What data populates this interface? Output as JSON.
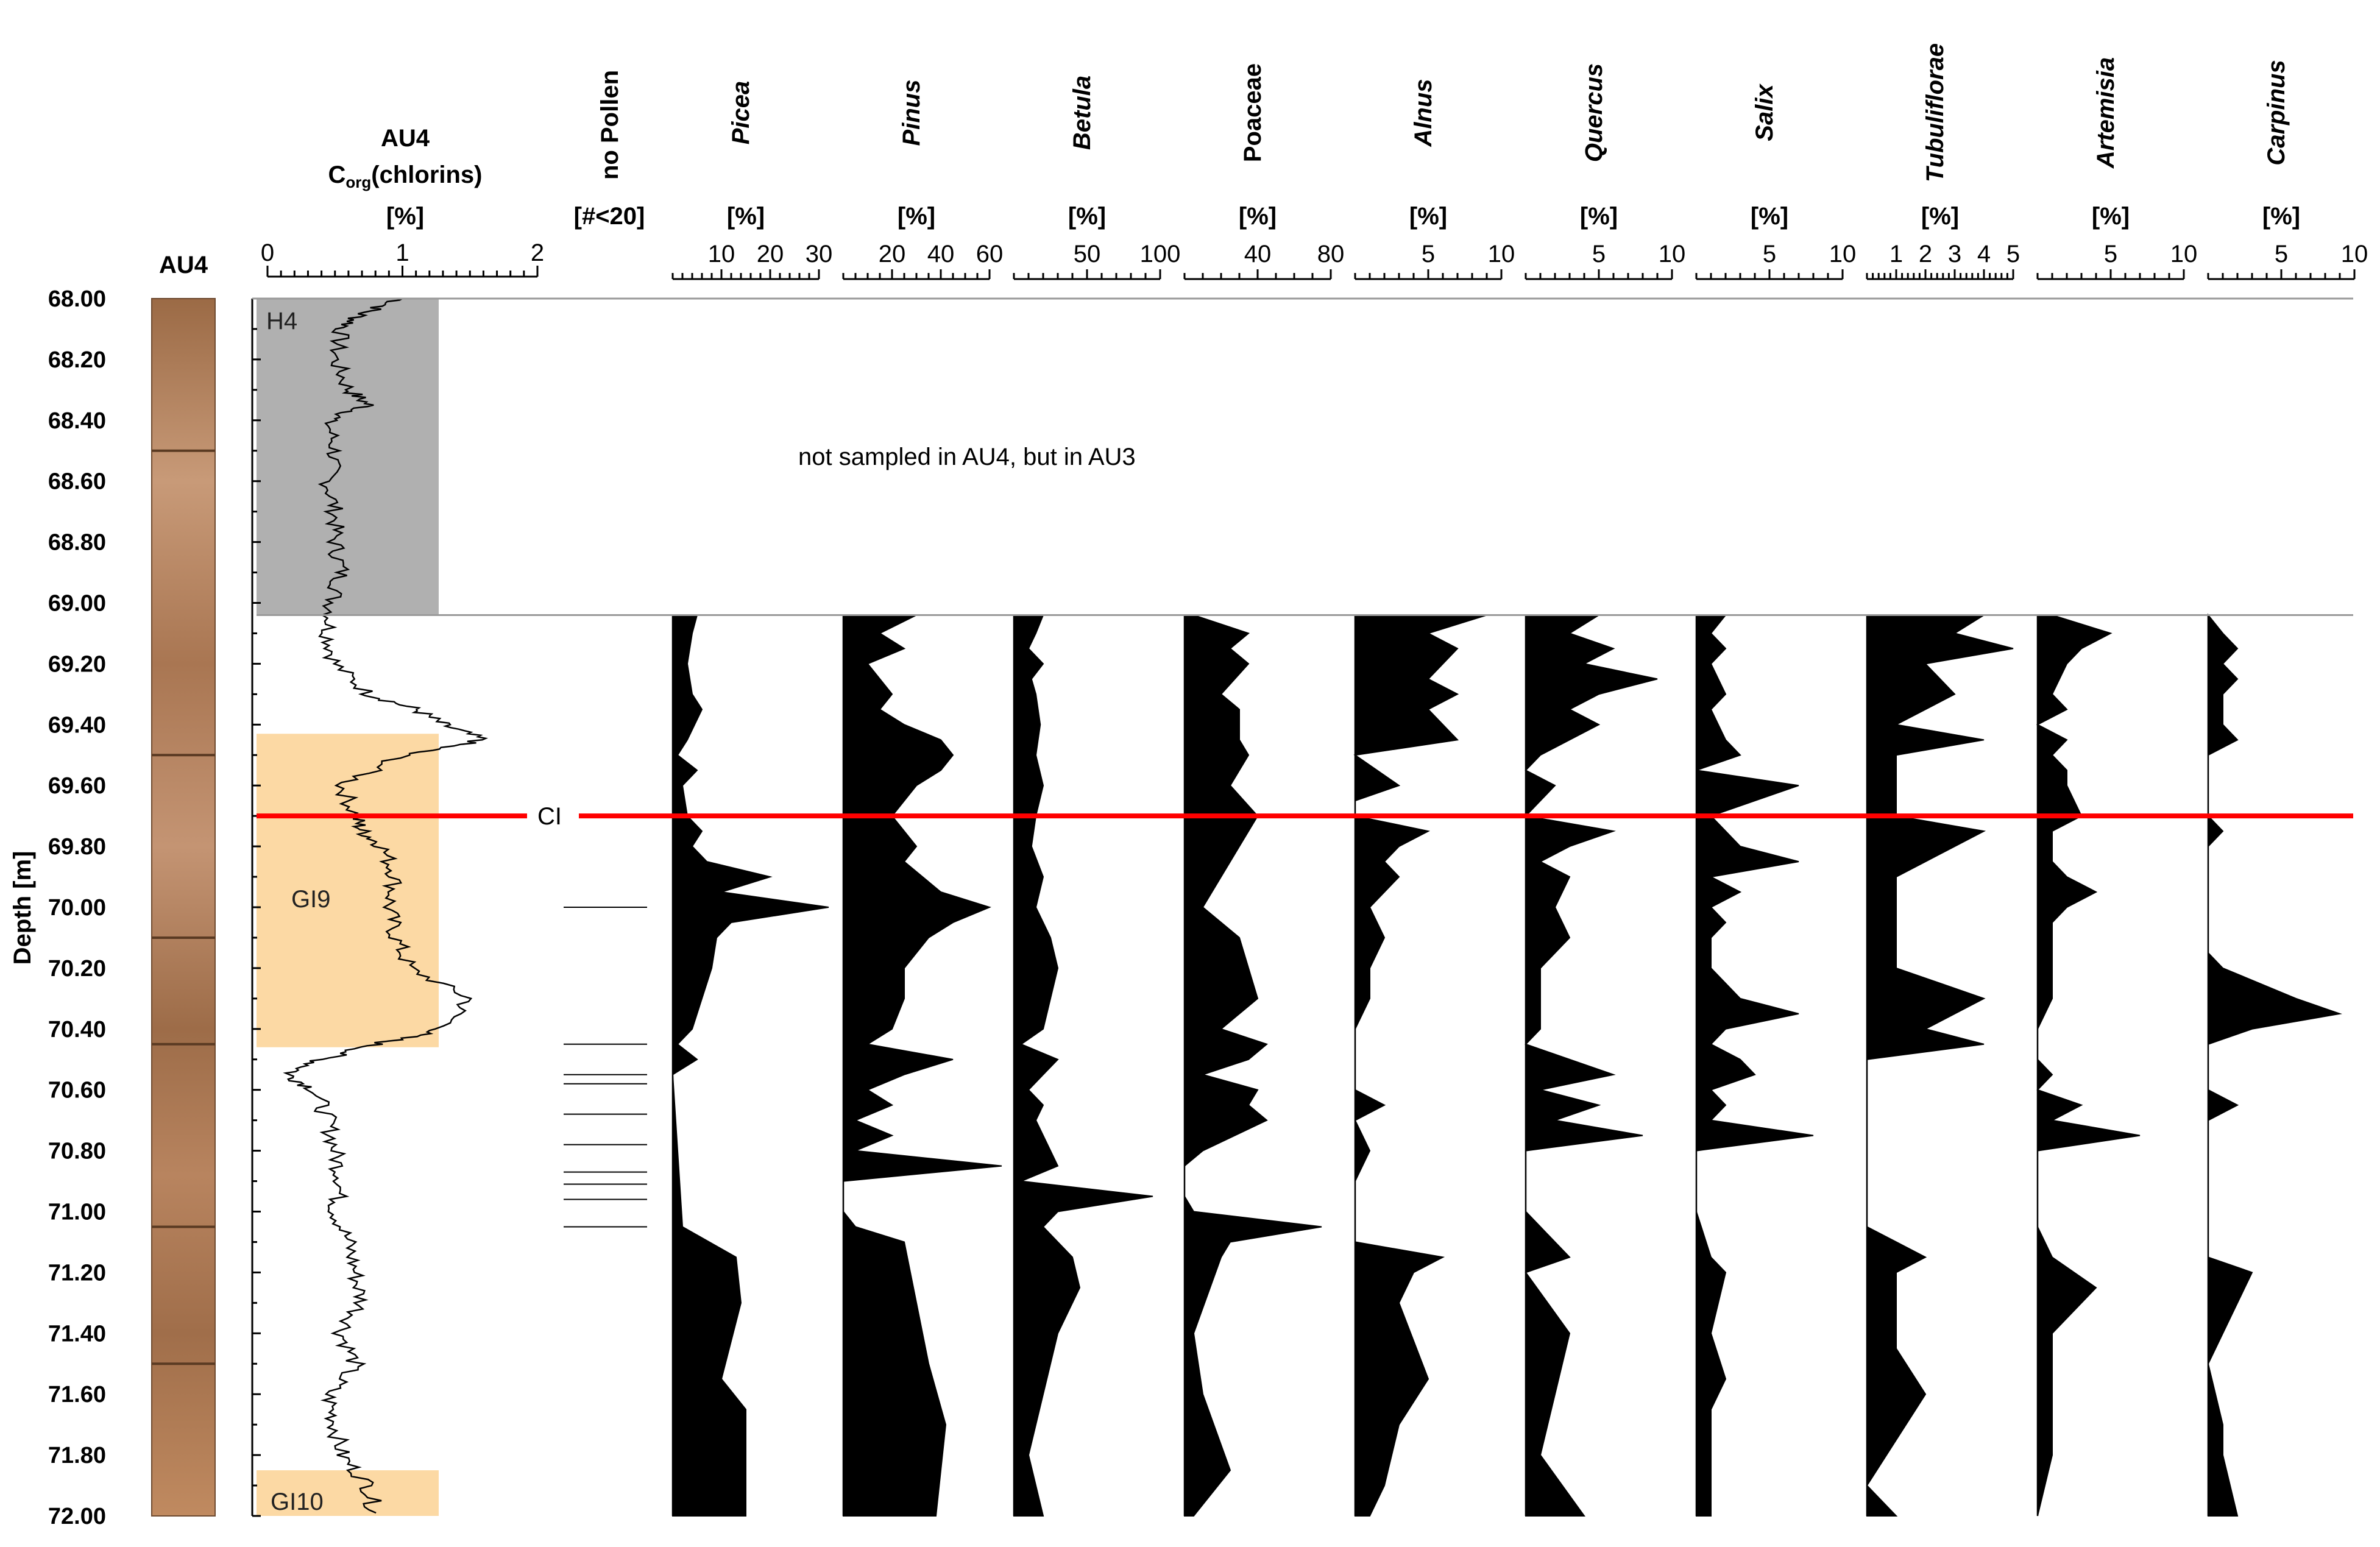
{
  "chart_data": {
    "type": "area",
    "title": "",
    "core_label": "AU4",
    "ylabel": "Depth [m]",
    "ylim": [
      68.0,
      72.0
    ],
    "yticks": [
      "68.00",
      "68.20",
      "68.40",
      "68.60",
      "68.80",
      "69.00",
      "69.20",
      "69.40",
      "69.60",
      "69.80",
      "70.00",
      "70.20",
      "70.40",
      "70.60",
      "70.80",
      "71.00",
      "71.20",
      "71.40",
      "71.60",
      "71.80",
      "72.00"
    ],
    "annotation": "not sampled in AU4, but in AU3",
    "marker_line": {
      "label": "CI",
      "depth": 69.7,
      "color": "#ff0000"
    },
    "zones": [
      {
        "label": "H4",
        "top": 68.0,
        "bottom": 69.04,
        "color": "#b0b0b0"
      },
      {
        "label": "GI9",
        "top": 69.43,
        "bottom": 70.46,
        "color": "#fcd9a4"
      },
      {
        "label": "GI10",
        "top": 71.85,
        "bottom": 72.0,
        "color": "#fcd9a4"
      }
    ],
    "corg": {
      "header": "AU4",
      "label_main": "C",
      "label_sub": "org",
      "label_rest": "(chlorins)",
      "unit": "[%]",
      "xlim": [
        0,
        2
      ],
      "ticks": [
        "0",
        "1",
        "2"
      ],
      "depth": [
        68.0,
        68.05,
        68.1,
        68.2,
        68.3,
        68.35,
        68.4,
        68.5,
        68.6,
        68.7,
        68.8,
        68.9,
        69.0,
        69.1,
        69.2,
        69.3,
        69.35,
        69.4,
        69.45,
        69.5,
        69.6,
        69.7,
        69.75,
        69.8,
        69.9,
        70.0,
        70.1,
        70.2,
        70.3,
        70.4,
        70.45,
        70.5,
        70.55,
        70.6,
        70.7,
        70.8,
        70.9,
        71.0,
        71.1,
        71.2,
        71.3,
        71.4,
        71.5,
        71.6,
        71.7,
        71.8,
        71.9,
        72.0
      ],
      "values": [
        1.0,
        0.7,
        0.55,
        0.5,
        0.6,
        0.75,
        0.45,
        0.5,
        0.45,
        0.5,
        0.5,
        0.55,
        0.48,
        0.45,
        0.5,
        0.75,
        1.1,
        1.3,
        1.6,
        1.0,
        0.55,
        0.65,
        0.7,
        0.85,
        0.95,
        0.9,
        0.95,
        1.05,
        1.5,
        1.3,
        0.8,
        0.4,
        0.15,
        0.35,
        0.45,
        0.5,
        0.55,
        0.5,
        0.6,
        0.65,
        0.7,
        0.55,
        0.65,
        0.45,
        0.5,
        0.55,
        0.75,
        0.8
      ]
    },
    "no_pollen": {
      "header": "no Pollen",
      "unit": "[#<20]",
      "depths": [
        70.0,
        70.45,
        70.55,
        70.58,
        70.68,
        70.78,
        70.87,
        70.91,
        70.96,
        71.05
      ]
    },
    "series": [
      {
        "name": "Picea",
        "italic": true,
        "unit": "[%]",
        "xmax": 30,
        "ticks": [
          10,
          20,
          30
        ],
        "depth": [
          69.04,
          69.1,
          69.2,
          69.3,
          69.35,
          69.45,
          69.5,
          69.55,
          69.6,
          69.7,
          69.75,
          69.8,
          69.85,
          69.9,
          69.95,
          70.0,
          70.05,
          70.1,
          70.2,
          70.3,
          70.4,
          70.45,
          70.5,
          70.55,
          71.05,
          71.15,
          71.3,
          71.55,
          71.65,
          72.0
        ],
        "values": [
          5,
          4,
          3,
          4,
          6,
          3,
          1,
          5,
          2,
          3,
          6,
          4,
          7,
          20,
          10,
          32,
          12,
          9,
          8,
          6,
          4,
          1,
          5,
          0,
          2,
          13,
          14,
          10,
          15,
          15
        ]
      },
      {
        "name": "Pinus",
        "italic": true,
        "unit": "[%]",
        "xmax": 60,
        "ticks": [
          20,
          40,
          60
        ],
        "depth": [
          69.04,
          69.1,
          69.15,
          69.2,
          69.3,
          69.35,
          69.4,
          69.45,
          69.5,
          69.55,
          69.6,
          69.7,
          69.8,
          69.85,
          69.95,
          70.0,
          70.05,
          70.1,
          70.2,
          70.3,
          70.4,
          70.45,
          70.5,
          70.55,
          70.6,
          70.65,
          70.7,
          70.75,
          70.8,
          70.85,
          70.9,
          71.0,
          71.05,
          71.1,
          71.3,
          71.5,
          71.7,
          72.0
        ],
        "values": [
          30,
          15,
          25,
          10,
          20,
          15,
          25,
          40,
          45,
          40,
          30,
          20,
          30,
          25,
          40,
          60,
          45,
          35,
          25,
          25,
          20,
          10,
          45,
          25,
          10,
          20,
          5,
          20,
          5,
          65,
          0,
          0,
          5,
          25,
          30,
          35,
          42,
          38
        ]
      },
      {
        "name": "Betula",
        "italic": true,
        "unit": "[%]",
        "xmax": 100,
        "ticks": [
          50,
          100
        ],
        "depth": [
          69.04,
          69.1,
          69.15,
          69.2,
          69.25,
          69.3,
          69.4,
          69.5,
          69.6,
          69.7,
          69.8,
          69.9,
          70.0,
          70.1,
          70.2,
          70.3,
          70.4,
          70.45,
          70.5,
          70.55,
          70.6,
          70.65,
          70.7,
          70.8,
          70.85,
          70.9,
          70.95,
          71.0,
          71.05,
          71.15,
          71.25,
          71.4,
          71.6,
          71.8,
          72.0
        ],
        "values": [
          20,
          15,
          10,
          20,
          12,
          15,
          18,
          15,
          20,
          15,
          12,
          20,
          15,
          25,
          30,
          25,
          20,
          5,
          30,
          20,
          10,
          20,
          15,
          25,
          30,
          5,
          95,
          30,
          20,
          40,
          45,
          30,
          20,
          10,
          20
        ]
      },
      {
        "name": "Poaceae",
        "italic": false,
        "unit": "[%]",
        "xmax": 80,
        "ticks": [
          40,
          80
        ],
        "depth": [
          69.04,
          69.1,
          69.15,
          69.2,
          69.3,
          69.35,
          69.45,
          69.5,
          69.6,
          69.7,
          69.8,
          69.85,
          70.0,
          70.1,
          70.2,
          70.3,
          70.4,
          70.45,
          70.5,
          70.55,
          70.6,
          70.65,
          70.7,
          70.8,
          70.85,
          70.9,
          70.95,
          71.0,
          71.05,
          71.1,
          71.15,
          71.4,
          71.6,
          71.85,
          72.0
        ],
        "values": [
          5,
          35,
          25,
          35,
          20,
          30,
          30,
          35,
          25,
          40,
          30,
          25,
          10,
          30,
          35,
          40,
          20,
          45,
          35,
          10,
          40,
          35,
          45,
          10,
          0,
          0,
          0,
          5,
          75,
          25,
          20,
          5,
          10,
          25,
          5
        ]
      },
      {
        "name": "Alnus",
        "italic": true,
        "unit": "[%]",
        "xmax": 10,
        "ticks": [
          5,
          10
        ],
        "depth": [
          69.04,
          69.1,
          69.15,
          69.2,
          69.25,
          69.3,
          69.35,
          69.4,
          69.45,
          69.5,
          69.6,
          69.65,
          69.7,
          69.75,
          69.8,
          69.85,
          69.9,
          69.95,
          70.0,
          70.1,
          70.2,
          70.3,
          70.4,
          70.45,
          70.5,
          70.6,
          70.65,
          70.7,
          70.8,
          70.9,
          71.0,
          71.1,
          71.15,
          71.2,
          71.3,
          71.55,
          71.7,
          71.9,
          72.0
        ],
        "values": [
          9,
          5,
          7,
          6,
          5,
          7,
          5,
          6,
          7,
          0,
          3,
          0,
          0,
          5,
          3,
          2,
          3,
          2,
          1,
          2,
          1,
          1,
          0,
          0,
          0,
          0,
          2,
          0,
          1,
          0,
          0,
          0,
          6,
          4,
          3,
          5,
          3,
          2,
          1
        ]
      },
      {
        "name": "Quercus",
        "italic": true,
        "unit": "[%]",
        "xmax": 10,
        "ticks": [
          5,
          10
        ],
        "depth": [
          69.04,
          69.1,
          69.15,
          69.2,
          69.25,
          69.3,
          69.35,
          69.4,
          69.45,
          69.5,
          69.55,
          69.6,
          69.65,
          69.7,
          69.75,
          69.8,
          69.85,
          69.9,
          70.0,
          70.1,
          70.2,
          70.3,
          70.4,
          70.45,
          70.5,
          70.55,
          70.6,
          70.65,
          70.7,
          70.75,
          70.8,
          70.85,
          71.0,
          71.05,
          71.15,
          71.2,
          71.4,
          71.6,
          71.8,
          72.0
        ],
        "values": [
          5,
          3,
          6,
          4,
          9,
          5,
          3,
          5,
          3,
          1,
          0,
          2,
          1,
          0,
          6,
          3,
          1,
          3,
          2,
          3,
          1,
          1,
          1,
          0,
          3,
          6,
          1,
          5,
          2,
          8,
          0,
          0,
          0,
          1,
          3,
          0,
          3,
          2,
          1,
          4
        ]
      },
      {
        "name": "Salix",
        "italic": true,
        "unit": "[%]",
        "xmax": 10,
        "ticks": [
          5,
          10
        ],
        "depth": [
          69.04,
          69.1,
          69.15,
          69.2,
          69.3,
          69.35,
          69.45,
          69.5,
          69.55,
          69.6,
          69.7,
          69.75,
          69.8,
          69.85,
          69.9,
          69.95,
          70.0,
          70.05,
          70.1,
          70.2,
          70.3,
          70.35,
          70.4,
          70.45,
          70.5,
          70.55,
          70.6,
          70.65,
          70.7,
          70.75,
          70.8,
          70.85,
          71.0,
          71.15,
          71.2,
          71.4,
          71.55,
          71.65,
          72.0
        ],
        "values": [
          2,
          1,
          2,
          1,
          2,
          1,
          2,
          3,
          0,
          7,
          1,
          2,
          3,
          7,
          1,
          3,
          1,
          2,
          1,
          1,
          3,
          7,
          2,
          1,
          3,
          4,
          1,
          2,
          1,
          8,
          0,
          0,
          0,
          1,
          2,
          1,
          2,
          1,
          1
        ]
      },
      {
        "name": "Tubuliflorae",
        "italic": true,
        "unit": "[%]",
        "xmax": 5,
        "ticks": [
          1,
          2,
          3,
          4,
          5
        ],
        "depth": [
          69.04,
          69.1,
          69.15,
          69.2,
          69.3,
          69.4,
          69.45,
          69.5,
          69.6,
          69.7,
          69.75,
          69.85,
          69.9,
          69.95,
          70.0,
          70.05,
          70.1,
          70.2,
          70.3,
          70.4,
          70.45,
          70.5,
          70.6,
          70.8,
          71.05,
          71.1,
          71.15,
          71.2,
          71.3,
          71.45,
          71.6,
          71.9,
          72.0
        ],
        "values": [
          4,
          3,
          5,
          2,
          3,
          1,
          4,
          1,
          1,
          1,
          4,
          2,
          1,
          1,
          1,
          1,
          1,
          1,
          4,
          2,
          4,
          0,
          0,
          0,
          0,
          1,
          2,
          1,
          1,
          1,
          2,
          0,
          1
        ]
      },
      {
        "name": "Artemisia",
        "italic": true,
        "unit": "[%]",
        "xmax": 10,
        "ticks": [
          5,
          10
        ],
        "depth": [
          69.04,
          69.1,
          69.15,
          69.2,
          69.3,
          69.35,
          69.4,
          69.45,
          69.5,
          69.55,
          69.6,
          69.7,
          69.75,
          69.85,
          69.9,
          69.95,
          70.0,
          70.05,
          70.1,
          70.2,
          70.3,
          70.4,
          70.45,
          70.5,
          70.55,
          70.6,
          70.65,
          70.7,
          70.75,
          70.8,
          71.05,
          71.15,
          71.25,
          71.4,
          71.6,
          71.8,
          72.0
        ],
        "values": [
          1,
          5,
          3,
          2,
          1,
          2,
          0,
          2,
          1,
          2,
          2,
          3,
          1,
          1,
          2,
          4,
          2,
          1,
          1,
          1,
          1,
          0,
          0,
          0,
          1,
          0,
          3,
          1,
          7,
          0,
          0,
          1,
          4,
          1,
          1,
          1,
          0
        ]
      },
      {
        "name": "Carpinus",
        "italic": true,
        "unit": "[%]",
        "xmax": 10,
        "ticks": [
          5,
          10
        ],
        "depth": [
          69.04,
          69.1,
          69.15,
          69.2,
          69.25,
          69.3,
          69.35,
          69.4,
          69.45,
          69.5,
          69.7,
          69.75,
          69.8,
          70.15,
          70.2,
          70.3,
          70.35,
          70.4,
          70.45,
          70.6,
          70.65,
          70.7,
          71.15,
          71.2,
          71.5,
          71.7,
          71.8,
          72.0
        ],
        "values": [
          0,
          1,
          2,
          1,
          2,
          1,
          1,
          1,
          2,
          0,
          0,
          1,
          0,
          0,
          1,
          6,
          9,
          3,
          0,
          0,
          2,
          0,
          0,
          3,
          0,
          1,
          1,
          2
        ]
      }
    ]
  }
}
